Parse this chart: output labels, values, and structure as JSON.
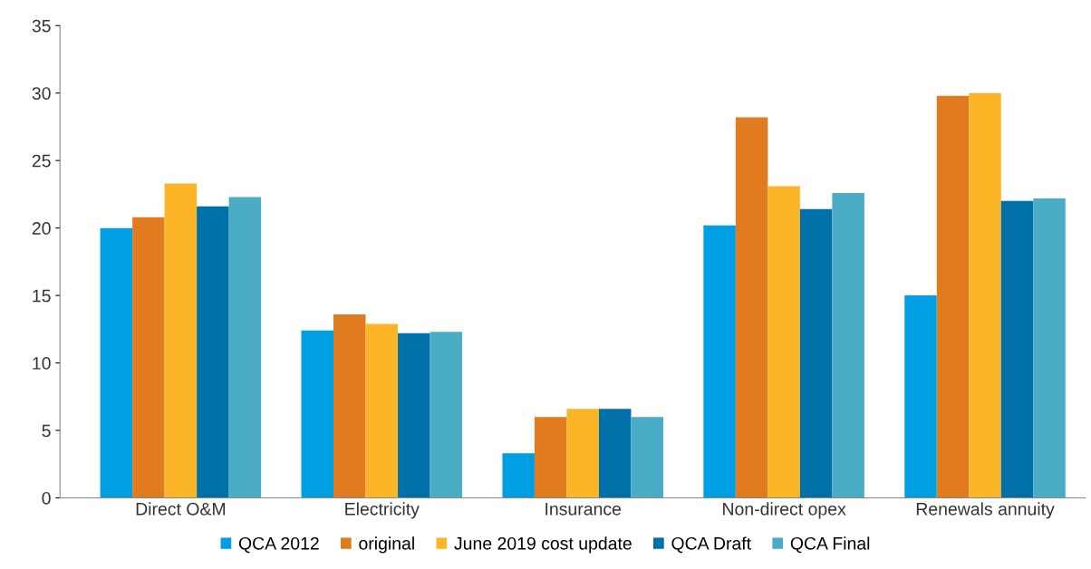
{
  "chart_data": {
    "type": "bar",
    "categories": [
      "Direct O&M",
      "Electricity",
      "Insurance",
      "Non-direct opex",
      "Renewals annuity"
    ],
    "series": [
      {
        "name": "QCA 2012",
        "color": "#009fe3",
        "values": [
          20.0,
          12.4,
          3.3,
          20.2,
          15.0
        ]
      },
      {
        "name": "original",
        "color": "#e07b20",
        "values": [
          20.8,
          13.6,
          6.0,
          28.2,
          29.8
        ]
      },
      {
        "name": "June 2019 cost update",
        "color": "#fbb526",
        "values": [
          23.3,
          12.9,
          6.6,
          23.1,
          30.0
        ]
      },
      {
        "name": "QCA Draft",
        "color": "#0070a8",
        "values": [
          21.6,
          12.2,
          6.6,
          21.4,
          22.0
        ]
      },
      {
        "name": "QCA Final",
        "color": "#4bacc6",
        "values": [
          22.3,
          12.3,
          6.0,
          22.6,
          22.2
        ]
      }
    ],
    "ylim": [
      0,
      35
    ],
    "yticks": [
      0,
      5,
      10,
      15,
      20,
      25,
      30,
      35
    ],
    "grid": false,
    "legend": "bottom"
  }
}
